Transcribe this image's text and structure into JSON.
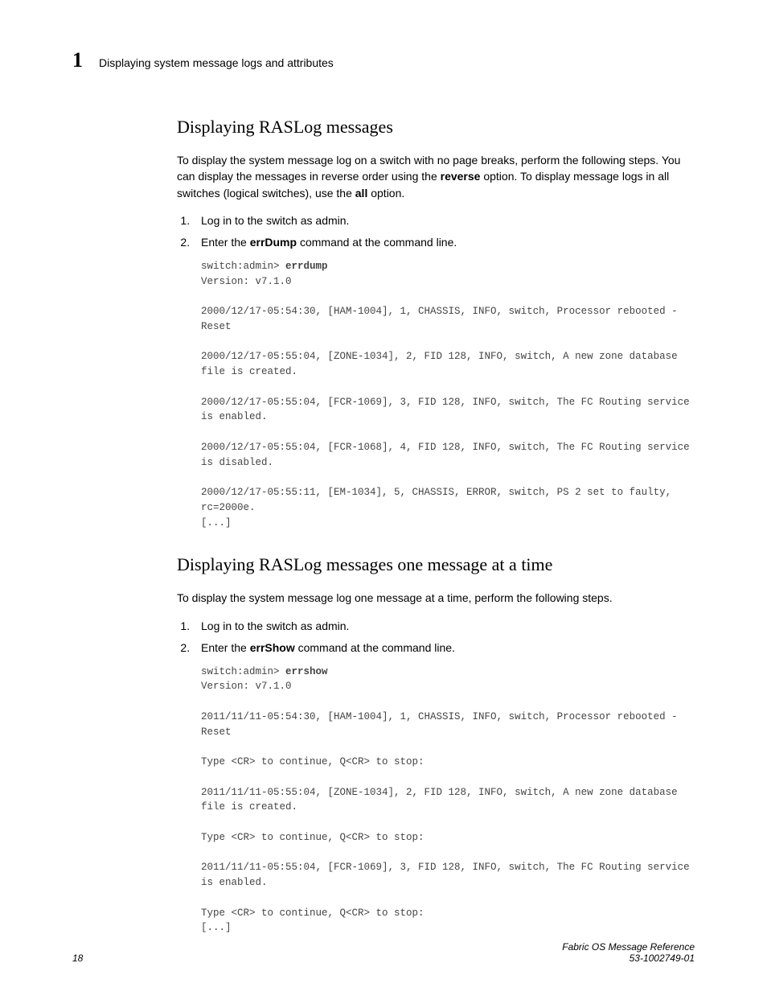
{
  "header": {
    "chapter_number": "1",
    "running_title": "Displaying system message logs and attributes"
  },
  "section1": {
    "title": "Displaying RASLog messages",
    "intro_part1": "To display the system message log on a switch with no page breaks, perform the following steps. You can display the messages in reverse order using the ",
    "bold1": "reverse",
    "intro_part2": " option. To display message logs in all switches (logical switches), use the ",
    "bold2": "all",
    "intro_part3": " option.",
    "step1": "Log in to the switch as admin.",
    "step2_prefix": "Enter the ",
    "step2_cmd": "errDump",
    "step2_suffix": " command at the command line.",
    "code_prompt": "switch:admin> ",
    "code_cmd": "errdump",
    "code_body": "Version: v7.1.0\n\n2000/12/17-05:54:30, [HAM-1004], 1, CHASSIS, INFO, switch, Processor rebooted - Reset\n\n2000/12/17-05:55:04, [ZONE-1034], 2, FID 128, INFO, switch, A new zone database file is created.\n\n2000/12/17-05:55:04, [FCR-1069], 3, FID 128, INFO, switch, The FC Routing service is enabled.\n\n2000/12/17-05:55:04, [FCR-1068], 4, FID 128, INFO, switch, The FC Routing service is disabled.\n\n2000/12/17-05:55:11, [EM-1034], 5, CHASSIS, ERROR, switch, PS 2 set to faulty, rc=2000e.\n[...]"
  },
  "section2": {
    "title": "Displaying RASLog messages one message at a time",
    "intro": "To display the system message log one message at a time, perform the following steps.",
    "step1": "Log in to the switch as admin.",
    "step2_prefix": "Enter the ",
    "step2_cmd": "errShow",
    "step2_suffix": " command at the command line.",
    "code_prompt": "switch:admin> ",
    "code_cmd": "errshow",
    "code_body": "Version: v7.1.0\n\n2011/11/11-05:54:30, [HAM-1004], 1, CHASSIS, INFO, switch, Processor rebooted - Reset\n\nType <CR> to continue, Q<CR> to stop:\n\n2011/11/11-05:55:04, [ZONE-1034], 2, FID 128, INFO, switch, A new zone database file is created.\n\nType <CR> to continue, Q<CR> to stop:\n\n2011/11/11-05:55:04, [FCR-1069], 3, FID 128, INFO, switch, The FC Routing service is enabled.\n\nType <CR> to continue, Q<CR> to stop:\n[...]"
  },
  "footer": {
    "page_number": "18",
    "doc_title": "Fabric OS Message Reference",
    "doc_id": "53-1002749-01"
  }
}
